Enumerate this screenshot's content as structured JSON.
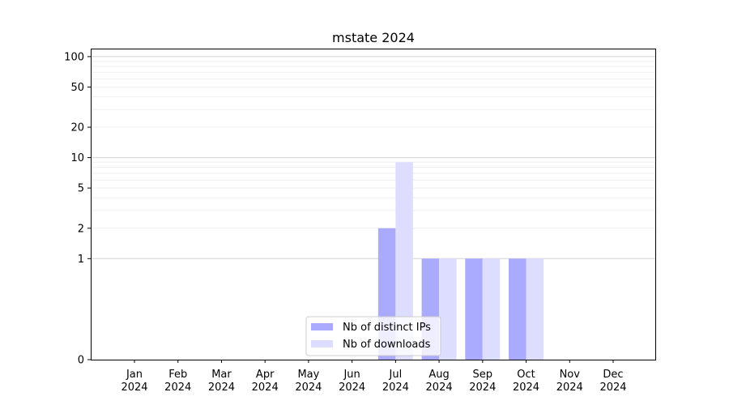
{
  "chart_data": {
    "type": "bar",
    "title": "mstate 2024",
    "xlabel": "",
    "ylabel": "",
    "yscale": "symlog",
    "ylim": [
      0,
      120
    ],
    "categories": [
      {
        "month": "Jan",
        "year": "2024"
      },
      {
        "month": "Feb",
        "year": "2024"
      },
      {
        "month": "Mar",
        "year": "2024"
      },
      {
        "month": "Apr",
        "year": "2024"
      },
      {
        "month": "May",
        "year": "2024"
      },
      {
        "month": "Jun",
        "year": "2024"
      },
      {
        "month": "Jul",
        "year": "2024"
      },
      {
        "month": "Aug",
        "year": "2024"
      },
      {
        "month": "Sep",
        "year": "2024"
      },
      {
        "month": "Oct",
        "year": "2024"
      },
      {
        "month": "Nov",
        "year": "2024"
      },
      {
        "month": "Dec",
        "year": "2024"
      }
    ],
    "yticks": [
      0,
      1,
      2,
      5,
      10,
      20,
      50,
      100
    ],
    "ytick_labels": [
      "0",
      "1",
      "2",
      "5",
      "10",
      "20",
      "50",
      "100"
    ],
    "series": [
      {
        "name": "Nb of distinct IPs",
        "color": "#aaaaff",
        "values": [
          0,
          0,
          0,
          0,
          0,
          0,
          2,
          1,
          1,
          1,
          0,
          0
        ]
      },
      {
        "name": "Nb of downloads",
        "color": "#ddddff",
        "values": [
          0,
          0,
          0,
          0,
          0,
          0,
          9,
          1,
          1,
          1,
          0,
          0
        ]
      }
    ],
    "grid": true,
    "legend_position": "bottom-center"
  }
}
